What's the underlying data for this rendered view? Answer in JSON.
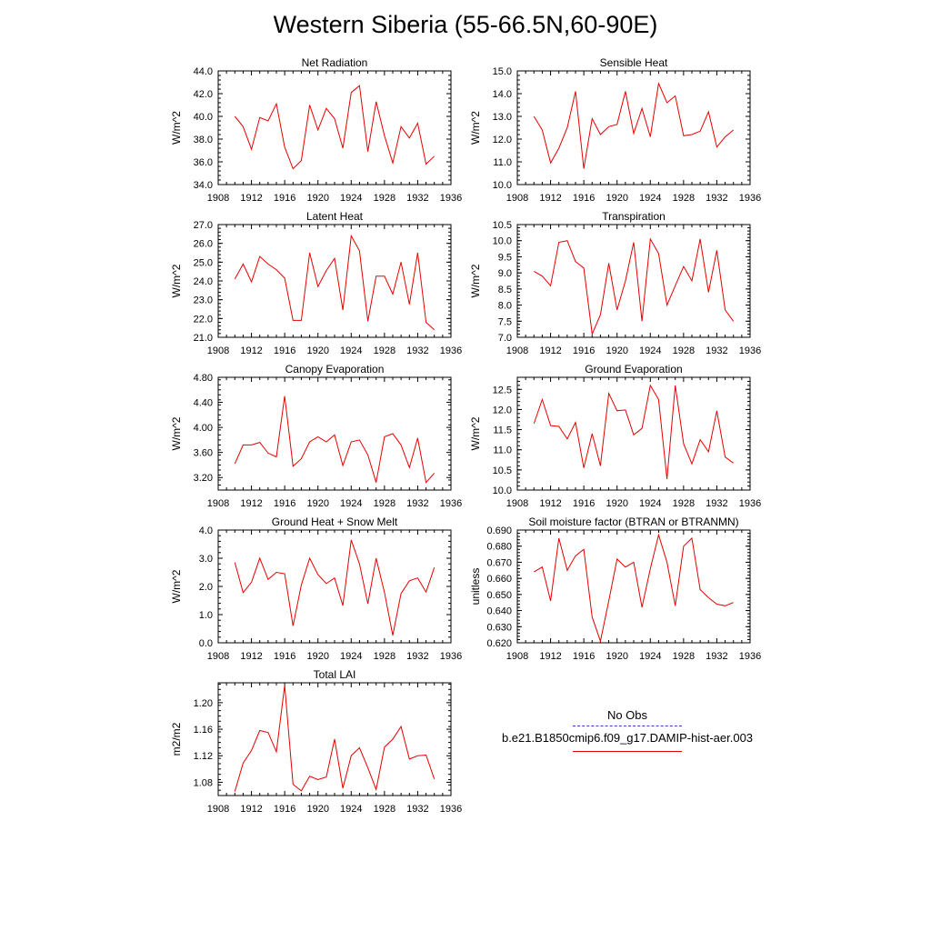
{
  "title": "Western Siberia (55-66.5N,60-90E)",
  "legend": {
    "entries": [
      {
        "label": "No Obs",
        "color": "#3a3ac8",
        "dash": "dashed"
      },
      {
        "label": "b.e21.B1850cmip6.f09_g17.DAMIP-hist-aer.003",
        "color": "#e60000",
        "dash": "solid"
      }
    ]
  },
  "chart_data": [
    {
      "type": "line",
      "title": "Net Radiation",
      "ylabel": "W/m^2",
      "xlim": [
        1908,
        1936
      ],
      "xticks": [
        1908,
        1912,
        1916,
        1920,
        1924,
        1928,
        1932,
        1936
      ],
      "ylim": [
        34.0,
        44.0
      ],
      "yticks": [
        "34.0",
        "36.0",
        "38.0",
        "40.0",
        "42.0",
        "44.0"
      ],
      "series": [
        {
          "color": "#e60000",
          "x": [
            1910,
            1911,
            1912,
            1913,
            1914,
            1915,
            1916,
            1917,
            1918,
            1919,
            1920,
            1921,
            1922,
            1923,
            1924,
            1925,
            1926,
            1927,
            1928,
            1929,
            1930,
            1931,
            1932,
            1933,
            1934
          ],
          "y": [
            40.0,
            39.1,
            37.1,
            39.9,
            39.6,
            41.1,
            37.3,
            35.4,
            36.1,
            41.0,
            38.8,
            40.7,
            39.8,
            37.2,
            42.1,
            42.7,
            36.9,
            41.3,
            38.3,
            35.9,
            39.1,
            38.1,
            39.4,
            35.8,
            36.5
          ]
        }
      ]
    },
    {
      "type": "line",
      "title": "Sensible Heat",
      "ylabel": "W/m^2",
      "xlim": [
        1908,
        1936
      ],
      "xticks": [
        1908,
        1912,
        1916,
        1920,
        1924,
        1928,
        1932,
        1936
      ],
      "ylim": [
        10.0,
        15.0
      ],
      "yticks": [
        "10.0",
        "11.0",
        "12.0",
        "13.0",
        "14.0",
        "15.0"
      ],
      "series": [
        {
          "color": "#e60000",
          "x": [
            1910,
            1911,
            1912,
            1913,
            1914,
            1915,
            1916,
            1917,
            1918,
            1919,
            1920,
            1921,
            1922,
            1923,
            1924,
            1925,
            1926,
            1927,
            1928,
            1929,
            1930,
            1931,
            1932,
            1933,
            1934
          ],
          "y": [
            13.0,
            12.4,
            10.95,
            11.6,
            12.5,
            14.1,
            10.7,
            12.9,
            12.2,
            12.55,
            12.65,
            14.1,
            12.25,
            13.35,
            12.1,
            14.45,
            13.6,
            13.9,
            12.15,
            12.2,
            12.35,
            13.2,
            11.65,
            12.1,
            12.4
          ]
        }
      ]
    },
    {
      "type": "line",
      "title": "Latent Heat",
      "ylabel": "W/m^2",
      "xlim": [
        1908,
        1936
      ],
      "xticks": [
        1908,
        1912,
        1916,
        1920,
        1924,
        1928,
        1932,
        1936
      ],
      "ylim": [
        21.0,
        27.0
      ],
      "yticks": [
        "21.0",
        "22.0",
        "23.0",
        "24.0",
        "25.0",
        "26.0",
        "27.0"
      ],
      "series": [
        {
          "color": "#e60000",
          "x": [
            1910,
            1911,
            1912,
            1913,
            1914,
            1915,
            1916,
            1917,
            1918,
            1919,
            1920,
            1921,
            1922,
            1923,
            1924,
            1925,
            1926,
            1927,
            1928,
            1929,
            1930,
            1931,
            1932,
            1933,
            1934
          ],
          "y": [
            24.1,
            24.9,
            23.95,
            25.3,
            24.9,
            24.6,
            24.15,
            21.9,
            21.9,
            25.5,
            23.7,
            24.55,
            25.2,
            22.45,
            26.4,
            25.6,
            21.85,
            24.25,
            24.25,
            23.3,
            25.0,
            22.75,
            25.5,
            21.8,
            21.4
          ]
        }
      ]
    },
    {
      "type": "line",
      "title": "Transpiration",
      "ylabel": "W/m^2",
      "xlim": [
        1908,
        1936
      ],
      "xticks": [
        1908,
        1912,
        1916,
        1920,
        1924,
        1928,
        1932,
        1936
      ],
      "ylim": [
        7.0,
        10.5
      ],
      "yticks": [
        "7.0",
        "7.5",
        "8.0",
        "8.5",
        "9.0",
        "9.5",
        "10.0",
        "10.5"
      ],
      "series": [
        {
          "color": "#e60000",
          "x": [
            1910,
            1911,
            1912,
            1913,
            1914,
            1915,
            1916,
            1917,
            1918,
            1919,
            1920,
            1921,
            1922,
            1923,
            1924,
            1925,
            1926,
            1927,
            1928,
            1929,
            1930,
            1931,
            1932,
            1933,
            1934
          ],
          "y": [
            9.05,
            8.9,
            8.6,
            9.95,
            10.0,
            9.35,
            9.15,
            7.1,
            7.7,
            9.3,
            7.85,
            8.75,
            9.95,
            7.5,
            10.05,
            9.6,
            8.0,
            8.6,
            9.2,
            8.75,
            10.05,
            8.4,
            9.7,
            7.85,
            7.5
          ]
        }
      ]
    },
    {
      "type": "line",
      "title": "Canopy Evaporation",
      "ylabel": "W/m^2",
      "xlim": [
        1908,
        1936
      ],
      "xticks": [
        1908,
        1912,
        1916,
        1920,
        1924,
        1928,
        1932,
        1936
      ],
      "ylim": [
        3.0,
        4.8
      ],
      "yticks": [
        "3.20",
        "3.60",
        "4.00",
        "4.40",
        "4.80"
      ],
      "series": [
        {
          "color": "#e60000",
          "x": [
            1910,
            1911,
            1912,
            1913,
            1914,
            1915,
            1916,
            1917,
            1918,
            1919,
            1920,
            1921,
            1922,
            1923,
            1924,
            1925,
            1926,
            1927,
            1928,
            1929,
            1930,
            1931,
            1932,
            1933,
            1934
          ],
          "y": [
            3.42,
            3.72,
            3.72,
            3.76,
            3.59,
            3.53,
            4.5,
            3.38,
            3.5,
            3.77,
            3.85,
            3.77,
            3.88,
            3.39,
            3.77,
            3.8,
            3.56,
            3.12,
            3.85,
            3.9,
            3.72,
            3.36,
            3.83,
            3.12,
            3.27
          ]
        }
      ]
    },
    {
      "type": "line",
      "title": "Ground Evaporation",
      "ylabel": "W/m^2",
      "xlim": [
        1908,
        1936
      ],
      "xticks": [
        1908,
        1912,
        1916,
        1920,
        1924,
        1928,
        1932,
        1936
      ],
      "ylim": [
        10.0,
        12.8
      ],
      "yticks": [
        "10.0",
        "10.5",
        "11.0",
        "11.5",
        "12.0",
        "12.5"
      ],
      "series": [
        {
          "color": "#e60000",
          "x": [
            1910,
            1911,
            1912,
            1913,
            1914,
            1915,
            1916,
            1917,
            1918,
            1919,
            1920,
            1921,
            1922,
            1923,
            1924,
            1925,
            1926,
            1927,
            1928,
            1929,
            1930,
            1931,
            1932,
            1933,
            1934
          ],
          "y": [
            11.65,
            12.25,
            11.6,
            11.58,
            11.27,
            11.68,
            10.55,
            11.4,
            10.6,
            12.4,
            11.97,
            11.99,
            11.37,
            11.53,
            12.6,
            12.25,
            10.27,
            12.6,
            11.15,
            10.65,
            11.25,
            10.95,
            11.97,
            10.82,
            10.67
          ]
        }
      ]
    },
    {
      "type": "line",
      "title": "Ground Heat + Snow Melt",
      "ylabel": "W/m^2",
      "xlim": [
        1908,
        1936
      ],
      "xticks": [
        1908,
        1912,
        1916,
        1920,
        1924,
        1928,
        1932,
        1936
      ],
      "ylim": [
        0.0,
        4.0
      ],
      "yticks": [
        "0.0",
        "1.0",
        "2.0",
        "3.0",
        "4.0"
      ],
      "series": [
        {
          "color": "#e60000",
          "x": [
            1910,
            1911,
            1912,
            1913,
            1914,
            1915,
            1916,
            1917,
            1918,
            1919,
            1920,
            1921,
            1922,
            1923,
            1924,
            1925,
            1926,
            1927,
            1928,
            1929,
            1930,
            1931,
            1932,
            1933,
            1934
          ],
          "y": [
            2.85,
            1.78,
            2.15,
            3.0,
            2.25,
            2.5,
            2.45,
            0.6,
            2.05,
            3.0,
            2.42,
            2.1,
            2.3,
            1.32,
            3.65,
            2.8,
            1.38,
            3.0,
            1.78,
            0.26,
            1.75,
            2.2,
            2.3,
            1.8,
            2.67
          ]
        }
      ]
    },
    {
      "type": "line",
      "title": "Soil moisture factor (BTRAN or BTRANMN)",
      "ylabel": "unitless",
      "xlim": [
        1908,
        1936
      ],
      "xticks": [
        1908,
        1912,
        1916,
        1920,
        1924,
        1928,
        1932,
        1936
      ],
      "ylim": [
        0.62,
        0.69
      ],
      "yticks": [
        "0.620",
        "0.630",
        "0.640",
        "0.650",
        "0.660",
        "0.670",
        "0.680",
        "0.690"
      ],
      "series": [
        {
          "color": "#e60000",
          "x": [
            1910,
            1911,
            1912,
            1913,
            1914,
            1915,
            1916,
            1917,
            1918,
            1919,
            1920,
            1921,
            1922,
            1923,
            1924,
            1925,
            1926,
            1927,
            1928,
            1929,
            1930,
            1931,
            1932,
            1933,
            1934
          ],
          "y": [
            0.664,
            0.667,
            0.646,
            0.685,
            0.665,
            0.674,
            0.678,
            0.636,
            0.621,
            0.646,
            0.672,
            0.667,
            0.67,
            0.642,
            0.666,
            0.687,
            0.67,
            0.643,
            0.68,
            0.685,
            0.653,
            0.648,
            0.644,
            0.643,
            0.645
          ]
        }
      ]
    },
    {
      "type": "line",
      "title": "Total LAI",
      "ylabel": "m2/m2",
      "xlim": [
        1908,
        1936
      ],
      "xticks": [
        1908,
        1912,
        1916,
        1920,
        1924,
        1928,
        1932,
        1936
      ],
      "ylim": [
        1.06,
        1.23
      ],
      "yticks": [
        "1.08",
        "1.12",
        "1.16",
        "1.20"
      ],
      "series": [
        {
          "color": "#e60000",
          "x": [
            1910,
            1911,
            1912,
            1913,
            1914,
            1915,
            1916,
            1917,
            1918,
            1919,
            1920,
            1921,
            1922,
            1923,
            1924,
            1925,
            1926,
            1927,
            1928,
            1929,
            1930,
            1931,
            1932,
            1933,
            1934
          ],
          "y": [
            1.066,
            1.109,
            1.128,
            1.158,
            1.155,
            1.126,
            1.226,
            1.077,
            1.067,
            1.089,
            1.084,
            1.088,
            1.145,
            1.071,
            1.12,
            1.132,
            1.102,
            1.069,
            1.133,
            1.145,
            1.164,
            1.115,
            1.12,
            1.121,
            1.085
          ]
        }
      ]
    }
  ]
}
